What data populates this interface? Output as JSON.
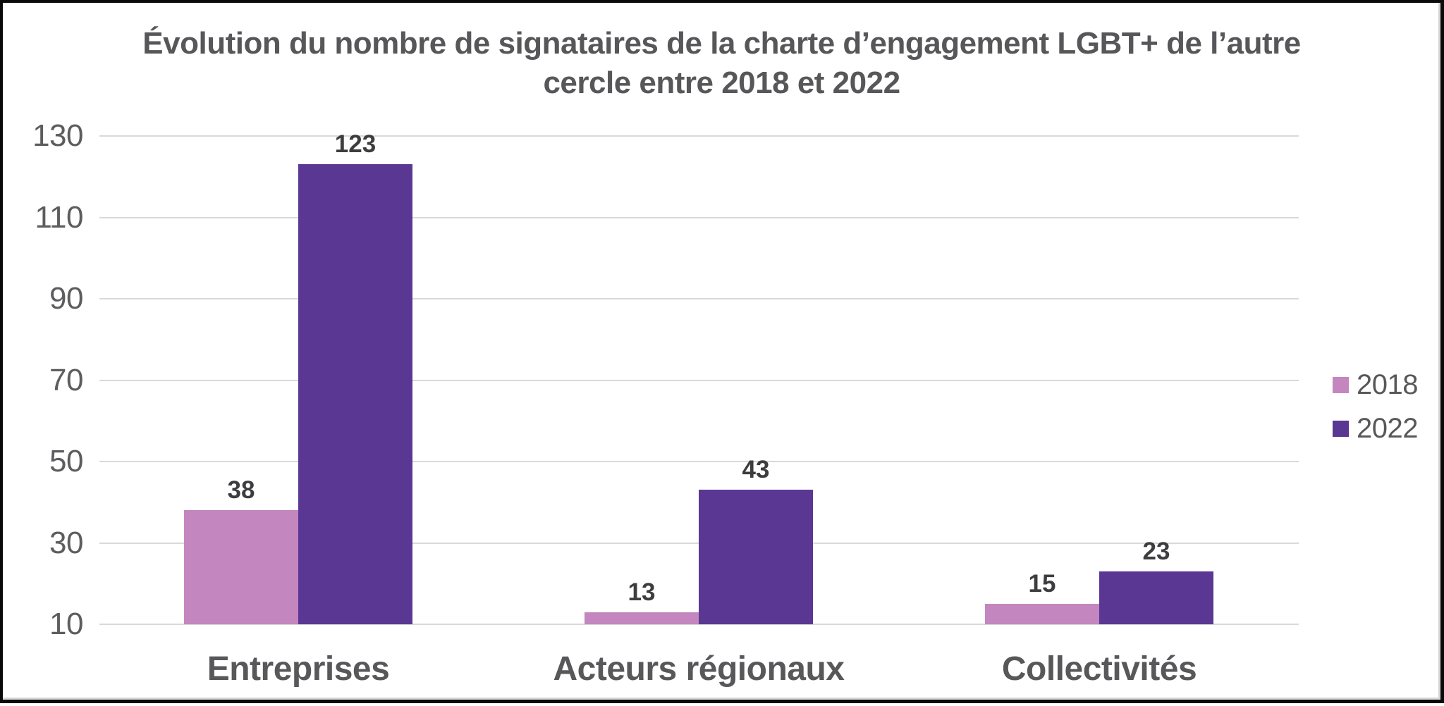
{
  "chart_data": {
    "type": "bar",
    "title": "Évolution du nombre de signataires de la charte d’engagement LGBT+ de l’autre cercle entre 2018 et 2022",
    "title_lines": [
      "Évolution du nombre de signataires de la charte d’engagement LGBT+ de l’autre",
      "cercle entre 2018 et 2022"
    ],
    "categories": [
      "Entreprises",
      "Acteurs régionaux",
      "Collectivités"
    ],
    "series": [
      {
        "name": "2018",
        "color": "#C486BF",
        "values": [
          38,
          13,
          15
        ]
      },
      {
        "name": "2022",
        "color": "#5A3792",
        "values": [
          123,
          43,
          23
        ]
      }
    ],
    "ylabel": "",
    "xlabel": "",
    "ylim": [
      10,
      130
    ],
    "yticks": [
      10,
      30,
      50,
      70,
      90,
      110,
      130
    ],
    "grid": true,
    "legend_position": "right",
    "data_labels_shown": true,
    "colors": {
      "grid": "#D9D9D9",
      "tick_text": "#5D5D60",
      "data_label_text": "#3D3D3F",
      "category_text": "#58585A",
      "title_text": "#57575A",
      "frame_border": "#0A0A0A",
      "background": "#FFFFFF"
    }
  }
}
